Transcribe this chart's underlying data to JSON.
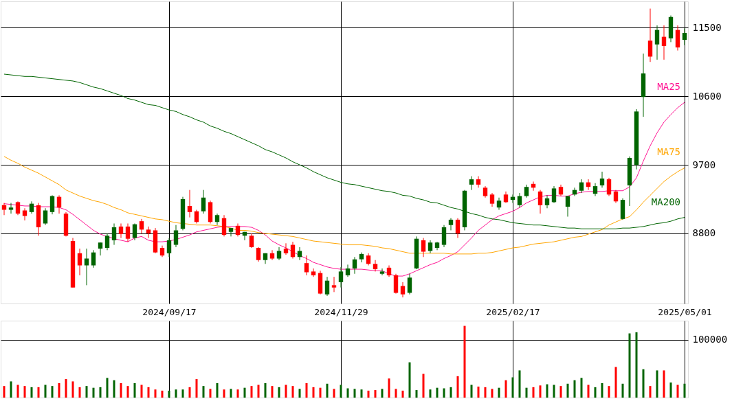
{
  "chart_data": [
    {
      "type": "candlestick",
      "categories": [
        null,
        null,
        null,
        null,
        null,
        null,
        null,
        null,
        null,
        null,
        null,
        null,
        null,
        null,
        null,
        null,
        null,
        null,
        null,
        null,
        null,
        null,
        null,
        null,
        "2024/09/17",
        null,
        null,
        null,
        null,
        null,
        null,
        null,
        null,
        null,
        null,
        null,
        null,
        null,
        null,
        null,
        null,
        null,
        null,
        null,
        null,
        null,
        null,
        null,
        null,
        "2024/11/29",
        null,
        null,
        null,
        null,
        null,
        null,
        null,
        null,
        null,
        null,
        null,
        null,
        null,
        null,
        null,
        null,
        null,
        null,
        null,
        null,
        null,
        null,
        null,
        null,
        "2025/02/17",
        null,
        null,
        null,
        null,
        null,
        null,
        null,
        null,
        null,
        null,
        null,
        null,
        null,
        null,
        null,
        null,
        null,
        null,
        null,
        null,
        null,
        null,
        null,
        null,
        "2025/05/01"
      ],
      "ohlc": [
        [
          9170,
          9200,
          9040,
          9110
        ],
        [
          9110,
          9200,
          9060,
          9140
        ],
        [
          9210,
          9220,
          9040,
          9060
        ],
        [
          9100,
          9130,
          8970,
          9030
        ],
        [
          9080,
          9220,
          9060,
          9190
        ],
        [
          9170,
          9200,
          8770,
          8880
        ],
        [
          8930,
          9130,
          8910,
          9100
        ],
        [
          9080,
          9300,
          9050,
          9290
        ],
        [
          9280,
          9300,
          9060,
          9140
        ],
        [
          9060,
          9080,
          8760,
          8770
        ],
        [
          8700,
          8740,
          8090,
          8090
        ],
        [
          8540,
          8600,
          8250,
          8380
        ],
        [
          8380,
          8600,
          8120,
          8470
        ],
        [
          8380,
          8580,
          8350,
          8550
        ],
        [
          8600,
          8680,
          8510,
          8680
        ],
        [
          8610,
          8800,
          8580,
          8770
        ],
        [
          8710,
          8930,
          8650,
          8880
        ],
        [
          8890,
          8930,
          8740,
          8790
        ],
        [
          8890,
          8930,
          8690,
          8730
        ],
        [
          8740,
          8930,
          8710,
          8920
        ],
        [
          8960,
          8990,
          8800,
          8850
        ],
        [
          8850,
          8890,
          8740,
          8800
        ],
        [
          8840,
          8870,
          8540,
          8550
        ],
        [
          8610,
          8640,
          8490,
          8510
        ],
        [
          8540,
          8740,
          8490,
          8710
        ],
        [
          8650,
          8910,
          8620,
          8840
        ],
        [
          8860,
          9280,
          8840,
          9250
        ],
        [
          9160,
          9370,
          9010,
          9080
        ],
        [
          9090,
          9110,
          8930,
          8950
        ],
        [
          9090,
          9370,
          9060,
          9270
        ],
        [
          9210,
          9230,
          8930,
          8950
        ],
        [
          8950,
          9060,
          8910,
          9040
        ],
        [
          9000,
          9040,
          8760,
          8780
        ],
        [
          8820,
          8870,
          8760,
          8870
        ],
        [
          8900,
          8930,
          8760,
          8780
        ],
        [
          8770,
          8820,
          8710,
          8820
        ],
        [
          8770,
          8800,
          8610,
          8620
        ],
        [
          8610,
          8620,
          8430,
          8450
        ],
        [
          8450,
          8540,
          8400,
          8540
        ],
        [
          8540,
          8580,
          8450,
          8470
        ],
        [
          8470,
          8620,
          8450,
          8570
        ],
        [
          8600,
          8670,
          8520,
          8540
        ],
        [
          8650,
          8690,
          8470,
          8490
        ],
        [
          8490,
          8620,
          8450,
          8570
        ],
        [
          8410,
          8510,
          8250,
          8290
        ],
        [
          8300,
          8340,
          8230,
          8250
        ],
        [
          8280,
          8310,
          8000,
          8010
        ],
        [
          8000,
          8230,
          7980,
          8180
        ],
        [
          8120,
          8230,
          8030,
          8090
        ],
        [
          8160,
          8360,
          8090,
          8300
        ],
        [
          8250,
          8390,
          8230,
          8340
        ],
        [
          8340,
          8490,
          8270,
          8460
        ],
        [
          8460,
          8550,
          8420,
          8530
        ],
        [
          8510,
          8540,
          8380,
          8400
        ],
        [
          8400,
          8450,
          8300,
          8330
        ],
        [
          8270,
          8340,
          8250,
          8300
        ],
        [
          8350,
          8380,
          8230,
          8250
        ],
        [
          8250,
          8270,
          8010,
          8020
        ],
        [
          8110,
          8160,
          7960,
          8000
        ],
        [
          8020,
          8270,
          8000,
          8220
        ],
        [
          8340,
          8760,
          8330,
          8730
        ],
        [
          8710,
          8740,
          8490,
          8560
        ],
        [
          8570,
          8710,
          8540,
          8680
        ],
        [
          8610,
          8690,
          8580,
          8680
        ],
        [
          8650,
          8910,
          8620,
          8880
        ],
        [
          8910,
          9000,
          8840,
          8980
        ],
        [
          8980,
          9000,
          8740,
          8800
        ],
        [
          8880,
          9370,
          8840,
          9360
        ],
        [
          9440,
          9550,
          9370,
          9510
        ],
        [
          9510,
          9550,
          9400,
          9440
        ],
        [
          9400,
          9420,
          9270,
          9290
        ],
        [
          9310,
          9330,
          9150,
          9190
        ],
        [
          9140,
          9270,
          9110,
          9230
        ],
        [
          9310,
          9350,
          9200,
          9210
        ],
        [
          9240,
          9310,
          9200,
          9280
        ],
        [
          9170,
          9330,
          9140,
          9290
        ],
        [
          9290,
          9440,
          9270,
          9410
        ],
        [
          9450,
          9480,
          9360,
          9400
        ],
        [
          9350,
          9370,
          9060,
          9170
        ],
        [
          9170,
          9300,
          9130,
          9260
        ],
        [
          9210,
          9420,
          9200,
          9390
        ],
        [
          9410,
          9440,
          9290,
          9310
        ],
        [
          9150,
          9290,
          9020,
          9290
        ],
        [
          9310,
          9400,
          9290,
          9370
        ],
        [
          9360,
          9510,
          9330,
          9470
        ],
        [
          9470,
          9510,
          9370,
          9410
        ],
        [
          9320,
          9460,
          9290,
          9420
        ],
        [
          9430,
          9610,
          9400,
          9520
        ],
        [
          9510,
          9530,
          9290,
          9310
        ],
        [
          9350,
          9370,
          9200,
          9220
        ],
        [
          8990,
          9260,
          8980,
          9240
        ],
        [
          9430,
          9810,
          9160,
          9790
        ],
        [
          9700,
          10430,
          9640,
          10400
        ],
        [
          10590,
          11160,
          10330,
          10900
        ],
        [
          11330,
          11750,
          11050,
          11120
        ],
        [
          11280,
          11530,
          11080,
          11470
        ],
        [
          11380,
          11530,
          11080,
          11260
        ],
        [
          11360,
          11660,
          11310,
          11640
        ],
        [
          11470,
          11530,
          11200,
          11240
        ],
        [
          11340,
          11490,
          11270,
          11430
        ]
      ],
      "colors": [
        "#ff0000",
        "#006400",
        "#ff0000",
        "#ff0000",
        "#006400",
        "#ff0000",
        "#006400",
        "#006400",
        "#ff0000",
        "#ff0000",
        "#ff0000",
        "#ff0000",
        "#006400",
        "#006400",
        "#006400",
        "#006400",
        "#006400",
        "#ff0000",
        "#ff0000",
        "#006400",
        "#ff0000",
        "#ff0000",
        "#ff0000",
        "#ff0000",
        "#006400",
        "#006400",
        "#006400",
        "#ff0000",
        "#ff0000",
        "#006400",
        "#ff0000",
        "#006400",
        "#ff0000",
        "#006400",
        "#ff0000",
        "#006400",
        "#ff0000",
        "#ff0000",
        "#006400",
        "#ff0000",
        "#006400",
        "#ff0000",
        "#ff0000",
        "#006400",
        "#ff0000",
        "#ff0000",
        "#ff0000",
        "#006400",
        "#ff0000",
        "#006400",
        "#006400",
        "#006400",
        "#006400",
        "#ff0000",
        "#ff0000",
        "#006400",
        "#ff0000",
        "#ff0000",
        "#ff0000",
        "#006400",
        "#006400",
        "#ff0000",
        "#006400",
        "#006400",
        "#006400",
        "#006400",
        "#ff0000",
        "#006400",
        "#006400",
        "#ff0000",
        "#ff0000",
        "#ff0000",
        "#006400",
        "#ff0000",
        "#006400",
        "#006400",
        "#006400",
        "#ff0000",
        "#ff0000",
        "#006400",
        "#006400",
        "#ff0000",
        "#006400",
        "#006400",
        "#006400",
        "#ff0000",
        "#006400",
        "#006400",
        "#ff0000",
        "#ff0000",
        "#006400",
        "#006400",
        "#006400",
        "#006400",
        "#ff0000",
        "#006400",
        "#ff0000",
        "#006400",
        "#ff0000",
        "#006400"
      ],
      "series": [
        {
          "name": "MA25",
          "type": "line",
          "color": "#ff1493",
          "values": [
            9190,
            9180,
            9170,
            9160,
            9160,
            9150,
            9150,
            9150,
            9140,
            9110,
            9050,
            8980,
            8910,
            8840,
            8790,
            8760,
            8730,
            8710,
            8690,
            8740,
            8760,
            8710,
            8690,
            8690,
            8700,
            8720,
            8750,
            8780,
            8820,
            8840,
            8860,
            8880,
            8890,
            8890,
            8890,
            8890,
            8880,
            8840,
            8780,
            8700,
            8650,
            8610,
            8560,
            8510,
            8470,
            8420,
            8390,
            8360,
            8340,
            8330,
            8330,
            8330,
            8330,
            8320,
            8310,
            8310,
            8270,
            8240,
            8240,
            8270,
            8310,
            8350,
            8390,
            8420,
            8470,
            8510,
            8560,
            8650,
            8740,
            8840,
            8910,
            8980,
            9030,
            9060,
            9090,
            9140,
            9200,
            9240,
            9280,
            9300,
            9300,
            9290,
            9290,
            9320,
            9340,
            9350,
            9350,
            9350,
            9360,
            9360,
            9360,
            9410,
            9530,
            9750,
            9950,
            10120,
            10260,
            10360,
            10450,
            10520
          ]
        },
        {
          "name": "MA75",
          "type": "line",
          "color": "#ffa500",
          "values": [
            9810,
            9760,
            9720,
            9670,
            9630,
            9590,
            9540,
            9490,
            9440,
            9370,
            9330,
            9290,
            9260,
            9230,
            9210,
            9180,
            9140,
            9110,
            9070,
            9050,
            9030,
            9010,
            8990,
            8980,
            8960,
            8940,
            8930,
            8920,
            8910,
            8910,
            8910,
            8900,
            8890,
            8870,
            8840,
            8840,
            8830,
            8810,
            8800,
            8790,
            8780,
            8770,
            8760,
            8740,
            8720,
            8700,
            8690,
            8680,
            8670,
            8660,
            8650,
            8650,
            8650,
            8640,
            8630,
            8610,
            8600,
            8580,
            8560,
            8540,
            8540,
            8540,
            8540,
            8540,
            8540,
            8530,
            8530,
            8530,
            8530,
            8540,
            8540,
            8550,
            8570,
            8590,
            8610,
            8620,
            8640,
            8660,
            8670,
            8680,
            8690,
            8710,
            8730,
            8750,
            8760,
            8790,
            8820,
            8850,
            8910,
            8950,
            8990,
            9020,
            9110,
            9210,
            9300,
            9390,
            9480,
            9550,
            9610,
            9660
          ]
        },
        {
          "name": "MA200",
          "type": "line",
          "color": "#006400",
          "values": [
            10890,
            10880,
            10870,
            10860,
            10860,
            10850,
            10840,
            10830,
            10820,
            10810,
            10800,
            10780,
            10750,
            10720,
            10700,
            10670,
            10640,
            10610,
            10570,
            10550,
            10520,
            10490,
            10480,
            10450,
            10420,
            10400,
            10360,
            10330,
            10290,
            10260,
            10210,
            10180,
            10140,
            10110,
            10070,
            10030,
            9990,
            9950,
            9900,
            9870,
            9830,
            9790,
            9740,
            9700,
            9660,
            9610,
            9570,
            9530,
            9500,
            9470,
            9450,
            9440,
            9420,
            9400,
            9380,
            9360,
            9350,
            9330,
            9300,
            9290,
            9260,
            9240,
            9210,
            9200,
            9170,
            9140,
            9120,
            9090,
            9060,
            9040,
            9010,
            8990,
            8980,
            8960,
            8940,
            8930,
            8920,
            8910,
            8910,
            8900,
            8890,
            8880,
            8870,
            8870,
            8860,
            8860,
            8860,
            8860,
            8860,
            8860,
            8870,
            8870,
            8880,
            8890,
            8910,
            8930,
            8940,
            8960,
            8990,
            9010
          ]
        }
      ],
      "ylim": [
        7880,
        11845
      ],
      "yticks": [
        8800,
        9700,
        10600,
        11500
      ],
      "grid": true
    },
    {
      "type": "bar",
      "categories": [
        null,
        null,
        null,
        null,
        null,
        null,
        null,
        null,
        null,
        null,
        null,
        null,
        null,
        null,
        null,
        null,
        null,
        null,
        null,
        null,
        null,
        null,
        null,
        null,
        "2024/09/17",
        null,
        null,
        null,
        null,
        null,
        null,
        null,
        null,
        null,
        null,
        null,
        null,
        null,
        null,
        null,
        null,
        null,
        null,
        null,
        null,
        null,
        null,
        null,
        null,
        "2024/11/29",
        null,
        null,
        null,
        null,
        null,
        null,
        null,
        null,
        null,
        null,
        null,
        null,
        null,
        null,
        null,
        null,
        null,
        null,
        null,
        null,
        null,
        null,
        null,
        null,
        "2025/02/17",
        null,
        null,
        null,
        null,
        null,
        null,
        null,
        null,
        null,
        null,
        null,
        null,
        null,
        null,
        null,
        null,
        null,
        null,
        null,
        null,
        null,
        null,
        null,
        null,
        "2025/05/01"
      ],
      "values": [
        20000,
        28000,
        22000,
        20000,
        18000,
        18000,
        22000,
        20000,
        25000,
        32000,
        28000,
        18000,
        20000,
        17000,
        18000,
        34000,
        30000,
        25000,
        20000,
        25000,
        22000,
        18000,
        14000,
        12000,
        12000,
        14000,
        14000,
        18000,
        32000,
        20000,
        15000,
        25000,
        14000,
        15000,
        14000,
        17000,
        20000,
        22000,
        25000,
        20000,
        18000,
        22000,
        20000,
        15000,
        25000,
        18000,
        17000,
        24000,
        15000,
        22000,
        16000,
        15000,
        14000,
        12000,
        13000,
        15000,
        33000,
        15000,
        12000,
        61000,
        13000,
        41000,
        14000,
        17000,
        16000,
        18000,
        37000,
        124000,
        22000,
        19000,
        18000,
        15000,
        17000,
        30000,
        35000,
        47000,
        17000,
        18000,
        21000,
        23000,
        22000,
        20000,
        24000,
        30000,
        34000,
        22000,
        18000,
        25000,
        20000,
        53000,
        24000,
        111000,
        113000,
        49000,
        20000,
        47000,
        47000,
        26000,
        22000,
        24000
      ],
      "colors": [
        "#ff0000",
        "#006400",
        "#ff0000",
        "#ff0000",
        "#006400",
        "#ff0000",
        "#006400",
        "#006400",
        "#ff0000",
        "#ff0000",
        "#ff0000",
        "#ff0000",
        "#006400",
        "#006400",
        "#006400",
        "#006400",
        "#006400",
        "#ff0000",
        "#ff0000",
        "#006400",
        "#ff0000",
        "#ff0000",
        "#ff0000",
        "#ff0000",
        "#006400",
        "#006400",
        "#006400",
        "#ff0000",
        "#ff0000",
        "#006400",
        "#ff0000",
        "#006400",
        "#ff0000",
        "#006400",
        "#ff0000",
        "#006400",
        "#ff0000",
        "#ff0000",
        "#006400",
        "#ff0000",
        "#006400",
        "#ff0000",
        "#ff0000",
        "#006400",
        "#ff0000",
        "#ff0000",
        "#ff0000",
        "#006400",
        "#ff0000",
        "#006400",
        "#006400",
        "#006400",
        "#006400",
        "#ff0000",
        "#ff0000",
        "#006400",
        "#ff0000",
        "#ff0000",
        "#ff0000",
        "#006400",
        "#006400",
        "#ff0000",
        "#006400",
        "#006400",
        "#006400",
        "#006400",
        "#ff0000",
        "#ff0000",
        "#006400",
        "#ff0000",
        "#ff0000",
        "#ff0000",
        "#006400",
        "#ff0000",
        "#006400",
        "#006400",
        "#006400",
        "#ff0000",
        "#ff0000",
        "#006400",
        "#006400",
        "#ff0000",
        "#006400",
        "#006400",
        "#006400",
        "#ff0000",
        "#006400",
        "#006400",
        "#ff0000",
        "#ff0000",
        "#006400",
        "#006400",
        "#006400",
        "#006400",
        "#ff0000",
        "#006400",
        "#ff0000",
        "#006400",
        "#ff0000",
        "#006400"
      ],
      "ylim": [
        0,
        133000
      ],
      "yticks": [
        100000
      ],
      "tick_labels": "y",
      "grid": true
    }
  ]
}
